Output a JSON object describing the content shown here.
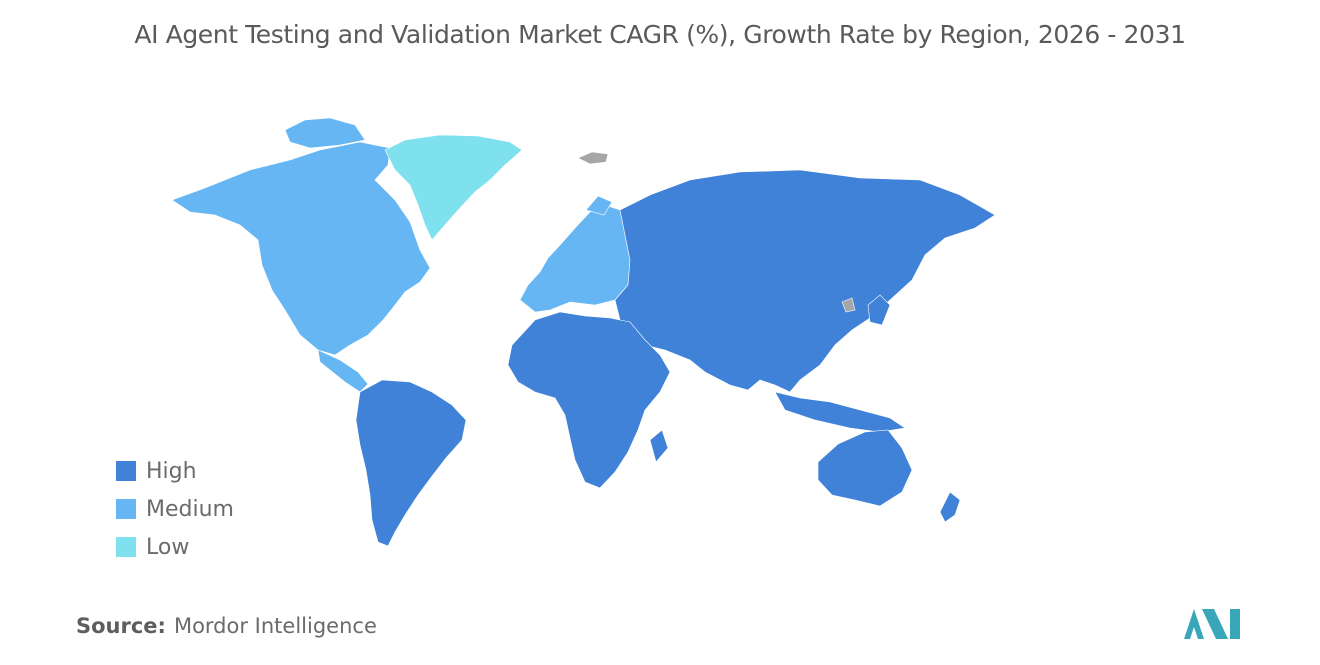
{
  "title": "AI Agent Testing and Validation Market CAGR (%), Growth Rate by Region, 2026 - 2031",
  "legend": [
    {
      "label": "High",
      "color": "#3f82d8"
    },
    {
      "label": "Medium",
      "color": "#66b6f4"
    },
    {
      "label": "Low",
      "color": "#7fe0ee"
    }
  ],
  "no_data_color": "#a6a6a6",
  "regions": {
    "north_america": "Medium",
    "greenland": "Low",
    "latin_america": "High",
    "europe": "Medium",
    "russia_asia": "High",
    "middle_east_africa": "High",
    "oceania": "High"
  },
  "source": {
    "label": "Source:",
    "value": "Mordor Intelligence"
  },
  "logo": {
    "color": "#3aa6b9",
    "alt": "Mordor Intelligence logo"
  }
}
